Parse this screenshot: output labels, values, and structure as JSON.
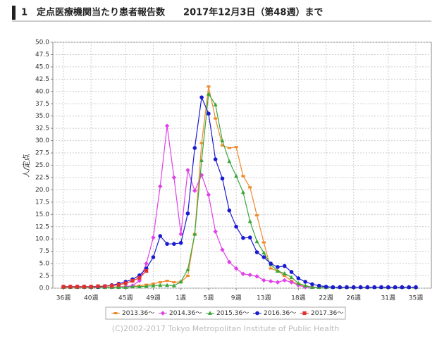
{
  "chart_data": {
    "type": "line",
    "title": "1　定点医療機関当たり患者報告数　　2017年12月3日（第48週）まで",
    "ylabel": "人/定点",
    "copyright": "(C)2002-2017 Tokyo Metropolitan Institute of Public Health",
    "grid": true,
    "legend": "bottom",
    "ylim": [
      0,
      50
    ],
    "yticks": [
      {
        "value": 0,
        "label": "0.0"
      },
      {
        "value": 2.5,
        "label": "2.5"
      },
      {
        "value": 5,
        "label": "5.0"
      },
      {
        "value": 7.5,
        "label": "7.5"
      },
      {
        "value": 10,
        "label": "10.0"
      },
      {
        "value": 12.5,
        "label": "12.5"
      },
      {
        "value": 15,
        "label": "15.0"
      },
      {
        "value": 17.5,
        "label": "17.5"
      },
      {
        "value": 20,
        "label": "20.0"
      },
      {
        "value": 22.5,
        "label": "22.5"
      },
      {
        "value": 25,
        "label": "25.0"
      },
      {
        "value": 27.5,
        "label": "27.5"
      },
      {
        "value": 30,
        "label": "30.0"
      },
      {
        "value": 32.5,
        "label": "32.5"
      },
      {
        "value": 35,
        "label": "35.0"
      },
      {
        "value": 37.5,
        "label": "37.5"
      },
      {
        "value": 40,
        "label": "40.0"
      },
      {
        "value": 42.5,
        "label": "42.5"
      },
      {
        "value": 45,
        "label": "45.0"
      },
      {
        "value": 47.5,
        "label": "47.5"
      },
      {
        "value": 50,
        "label": "50.0"
      }
    ],
    "categories": [
      "36週",
      null,
      null,
      null,
      "40週",
      null,
      null,
      null,
      null,
      "45週",
      null,
      null,
      null,
      "49週",
      null,
      null,
      null,
      "1週",
      null,
      null,
      null,
      "5週",
      null,
      null,
      null,
      "9週",
      null,
      null,
      null,
      "13週",
      null,
      null,
      null,
      null,
      "18週",
      null,
      null,
      null,
      "22週",
      null,
      null,
      null,
      "26週",
      null,
      null,
      null,
      null,
      "31週",
      null,
      null,
      null,
      "35週"
    ],
    "series": [
      {
        "name": "2013.36～",
        "color": "#f08a2c",
        "marker": "dash",
        "values": [
          0.2,
          0.2,
          0.2,
          0.2,
          0.2,
          0.2,
          0.2,
          0.2,
          0.3,
          0.3,
          0.4,
          0.5,
          0.7,
          0.9,
          1.2,
          1.5,
          1.2,
          1.3,
          2.5,
          11,
          29.5,
          41,
          34.5,
          29,
          28.5,
          28.7,
          22.8,
          20.5,
          14.8,
          9.3,
          4,
          3.5,
          2.5,
          1.5,
          0.8,
          0.4,
          0.2,
          0.2,
          0.2,
          0.2,
          0.2,
          0.2,
          0.2,
          0.2,
          0.2,
          0.2,
          0.2,
          0.2,
          0.2,
          0.2,
          0.2,
          0.2
        ]
      },
      {
        "name": "2014.36～",
        "color": "#e040e8",
        "marker": "diamond",
        "values": [
          0.2,
          0.2,
          0.2,
          0.2,
          0.2,
          0.2,
          0.2,
          0.2,
          0.2,
          0.3,
          0.5,
          1.5,
          5,
          10.3,
          20.7,
          33,
          22.5,
          11,
          24,
          19.8,
          23,
          19,
          11.5,
          7.8,
          5.3,
          4,
          2.9,
          2.7,
          2.4,
          1.6,
          1.4,
          1.2,
          1.6,
          1.2,
          0.6,
          0.2,
          0.2,
          0.2,
          0.2,
          0.2,
          0.2,
          0.2,
          0.2,
          0.2,
          0.2,
          0.2,
          0.2,
          0.2,
          0.2,
          0.2,
          0.2,
          0.2
        ]
      },
      {
        "name": "2015.36～",
        "color": "#3aa63a",
        "marker": "triangle",
        "values": [
          0.2,
          0.2,
          0.2,
          0.2,
          0.2,
          0.2,
          0.2,
          0.2,
          0.2,
          0.2,
          0.3,
          0.3,
          0.4,
          0.5,
          0.6,
          0.6,
          0.5,
          1.3,
          3.8,
          11,
          26,
          39.5,
          37.3,
          30,
          25.8,
          22.8,
          19.5,
          13.6,
          9.5,
          7.2,
          4.8,
          3.5,
          3,
          2.2,
          1,
          0.5,
          0.2,
          0.2,
          0.2,
          0.2,
          0.2,
          0.2,
          0.2,
          0.2,
          0.2,
          0.2,
          0.2,
          0.2,
          0.2,
          0.2,
          0.2,
          0.2
        ]
      },
      {
        "name": "2016.36～",
        "color": "#1a1ad0",
        "marker": "circle",
        "values": [
          0.3,
          0.3,
          0.3,
          0.3,
          0.3,
          0.3,
          0.4,
          0.6,
          0.9,
          1.3,
          1.8,
          2.6,
          4.0,
          6.3,
          10.6,
          9.0,
          9.0,
          9.2,
          15.2,
          28.5,
          38.8,
          35.5,
          26.2,
          22.3,
          15.8,
          12.5,
          10.2,
          10.3,
          7.3,
          6.3,
          5,
          4.3,
          4.5,
          3.3,
          2,
          1.3,
          0.8,
          0.5,
          0.3,
          0.2,
          0.2,
          0.2,
          0.2,
          0.2,
          0.2,
          0.2,
          0.2,
          0.2,
          0.2,
          0.2,
          0.2,
          0.2
        ]
      },
      {
        "name": "2017.36～",
        "color": "#e03030",
        "marker": "square",
        "values": [
          0.3,
          0.3,
          0.3,
          0.3,
          0.3,
          0.4,
          0.4,
          0.5,
          0.7,
          1.0,
          1.5,
          2.1,
          3.5,
          null,
          null,
          null,
          null,
          null,
          null,
          null,
          null,
          null,
          null,
          null,
          null,
          null,
          null,
          null,
          null,
          null,
          null,
          null,
          null,
          null,
          null,
          null,
          null,
          null,
          null,
          null,
          null,
          null,
          null,
          null,
          null,
          null,
          null,
          null,
          null,
          null,
          null,
          null
        ]
      }
    ]
  }
}
